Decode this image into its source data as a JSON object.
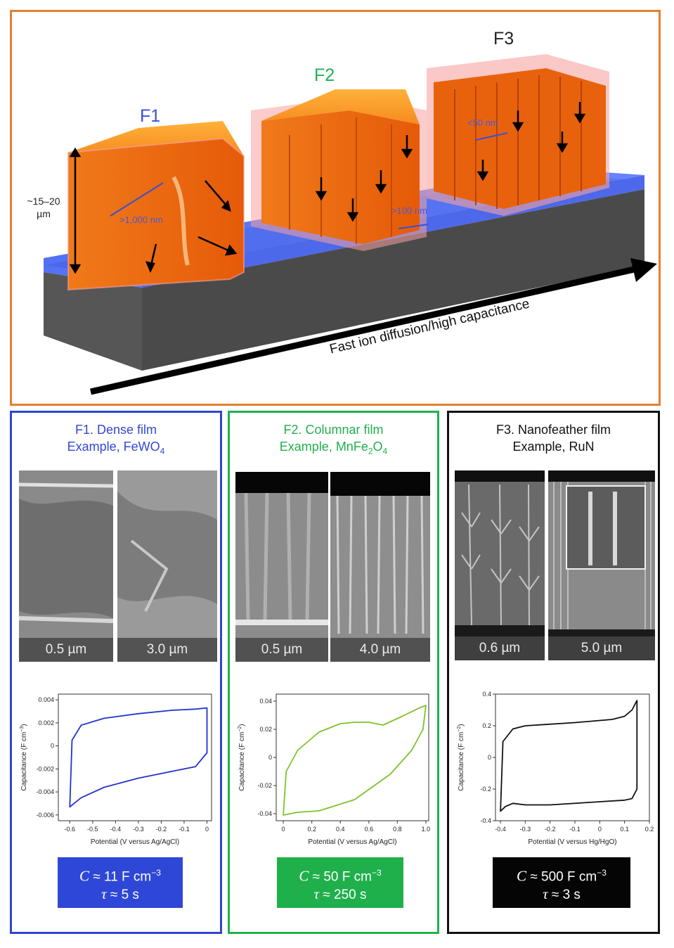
{
  "top": {
    "films": [
      {
        "name": "F1",
        "color": "#3a4fd8"
      },
      {
        "name": "F2",
        "color": "#1fb34f"
      },
      {
        "name": "F3",
        "color": "#222222"
      }
    ],
    "thickness_label_1": "~15–20",
    "thickness_label_2": "µm",
    "scale_f1": ">1,000 nm",
    "scale_f2": ">100 nm",
    "scale_f3": "<50 nm",
    "trend_caption": "Fast ion diffusion/high capacitance"
  },
  "panels": [
    {
      "title_line1": "F1. Dense film",
      "title_line2_prefix": "Example, FeWO",
      "title_line2_sub": "4",
      "title_line2_suffix": "",
      "color": "#2e45d0",
      "sem_labels": [
        "0.5 µm",
        "3.0 µm"
      ],
      "cv": {
        "xlabel": "Potential (V versus Ag/AgCl)",
        "ylabel": "Capacitance (F cm",
        "ylabel_sup": "−3",
        "ylabel_end": ")",
        "xticks": [
          "-0.6",
          "-0.5",
          "-0.4",
          "-0.3",
          "-0.2",
          "-0.1",
          "0"
        ],
        "yticks": [
          "0.004",
          "0.002",
          "0",
          "-0.002",
          "-0.004",
          "-0.006"
        ],
        "line_color": "#2233cc"
      },
      "c_line_prefix": "C",
      "c_value": " ≈ 11 F cm",
      "c_sup": "−3",
      "tau_symbol": "τ",
      "tau_value": " ≈ 5 s",
      "box_color": "#2f47d6"
    },
    {
      "title_line1": "F2. Columnar film",
      "title_line2_prefix": "Example, MnFe",
      "title_line2_sub": "2",
      "title_line2_suffix": "O",
      "title_line2_sub2": "4",
      "color": "#22b04b",
      "sem_labels": [
        "0.5 µm",
        "4.0 µm"
      ],
      "cv": {
        "xlabel": "Potential (V versus Ag/AgCl)",
        "ylabel": "Capacitance (F cm",
        "ylabel_sup": "−2",
        "ylabel_end": ")",
        "xticks": [
          "0",
          "0.2",
          "0.4",
          "0.6",
          "0.8",
          "1.0"
        ],
        "yticks": [
          "0.04",
          "0.02",
          "0",
          "-0.02",
          "-0.04"
        ],
        "line_color": "#7ec22a"
      },
      "c_line_prefix": "C",
      "c_value": " ≈ 50 F cm",
      "c_sup": "−3",
      "tau_symbol": "τ",
      "tau_value": " ≈ 250 s",
      "box_color": "#1fb04b"
    },
    {
      "title_line1": "F3. Nanofeather film",
      "title_line2_prefix": "Example, RuN",
      "title_line2_sub": "",
      "title_line2_suffix": "",
      "color": "#111111",
      "sem_labels": [
        "0.6 µm",
        "5.0 µm"
      ],
      "cv": {
        "xlabel": "Potential (V versus Hg/HgO)",
        "ylabel": "Capacitance (F cm",
        "ylabel_sup": "−2",
        "ylabel_end": ")",
        "xticks": [
          "-0.4",
          "-0.3",
          "-0.2",
          "-0.1",
          "0",
          "0.1",
          "0.2"
        ],
        "yticks": [
          "0.4",
          "0.2",
          "0",
          "-0.2",
          "-0.4"
        ],
        "line_color": "#111111"
      },
      "c_line_prefix": "C",
      "c_value": " ≈ 500 F cm",
      "c_sup": "−3",
      "tau_symbol": "τ",
      "tau_value": " ≈ 3 s",
      "box_color": "#050505"
    }
  ],
  "chart_data": [
    {
      "type": "line",
      "title": "",
      "xlabel": "Potential (V versus Ag/AgCl)",
      "ylabel": "Capacitance (F cm−3)",
      "xlim": [
        -0.65,
        0.02
      ],
      "ylim": [
        -0.0065,
        0.0045
      ],
      "series": [
        {
          "x": [
            -0.6,
            -0.59,
            -0.55,
            -0.45,
            -0.3,
            -0.15,
            -0.05,
            0.0,
            0.0,
            -0.05,
            -0.15,
            -0.3,
            -0.45,
            -0.55,
            -0.6
          ],
          "y": [
            -0.0053,
            0.0005,
            0.0018,
            0.0024,
            0.0028,
            0.0031,
            0.0032,
            0.0033,
            -0.0006,
            -0.0018,
            -0.0022,
            -0.0028,
            -0.0036,
            -0.0045,
            -0.0053
          ]
        }
      ]
    },
    {
      "type": "line",
      "title": "",
      "xlabel": "Potential (V versus Ag/AgCl)",
      "ylabel": "Capacitance (F cm−2)",
      "xlim": [
        -0.05,
        1.02
      ],
      "ylim": [
        -0.045,
        0.045
      ],
      "series": [
        {
          "x": [
            0.0,
            0.02,
            0.1,
            0.25,
            0.4,
            0.5,
            0.6,
            0.7,
            0.85,
            0.95,
            1.0,
            0.98,
            0.9,
            0.75,
            0.5,
            0.25,
            0.1,
            0.0
          ],
          "y": [
            -0.041,
            -0.01,
            0.005,
            0.018,
            0.024,
            0.025,
            0.025,
            0.023,
            0.03,
            0.035,
            0.037,
            0.02,
            0.005,
            -0.012,
            -0.03,
            -0.038,
            -0.039,
            -0.041
          ]
        }
      ]
    },
    {
      "type": "line",
      "title": "",
      "xlabel": "Potential (V versus Hg/HgO)",
      "ylabel": "Capacitance (F cm−2)",
      "xlim": [
        -0.42,
        0.2
      ],
      "ylim": [
        -0.4,
        0.4
      ],
      "series": [
        {
          "x": [
            -0.4,
            -0.39,
            -0.35,
            -0.3,
            -0.1,
            0.05,
            0.1,
            0.13,
            0.15,
            0.15,
            0.13,
            0.1,
            0.0,
            -0.2,
            -0.3,
            -0.35,
            -0.38,
            -0.4
          ],
          "y": [
            -0.34,
            0.1,
            0.18,
            0.2,
            0.22,
            0.24,
            0.26,
            0.3,
            0.36,
            -0.2,
            -0.26,
            -0.27,
            -0.28,
            -0.3,
            -0.3,
            -0.29,
            -0.31,
            -0.34
          ]
        }
      ]
    }
  ]
}
